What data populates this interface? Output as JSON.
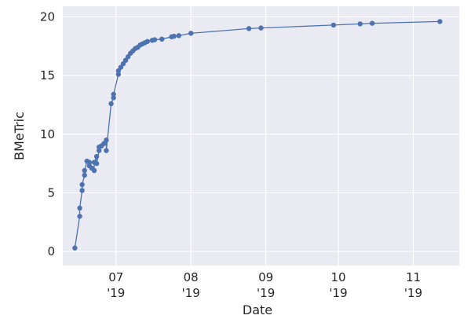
{
  "chart_data": {
    "type": "line",
    "x_label": "Date",
    "y_label": "BMeTric",
    "x": [
      "2019-06-14",
      "2019-06-16",
      "2019-06-16",
      "2019-06-17",
      "2019-06-17",
      "2019-06-18",
      "2019-06-18",
      "2019-06-19",
      "2019-06-20",
      "2019-06-20",
      "2019-06-21",
      "2019-06-22",
      "2019-06-22",
      "2019-06-23",
      "2019-06-23",
      "2019-06-24",
      "2019-06-24",
      "2019-06-25",
      "2019-06-26",
      "2019-06-27",
      "2019-06-27",
      "2019-06-29",
      "2019-06-30",
      "2019-06-30",
      "2019-07-02",
      "2019-07-02",
      "2019-07-03",
      "2019-07-04",
      "2019-07-05",
      "2019-07-06",
      "2019-07-07",
      "2019-07-08",
      "2019-07-09",
      "2019-07-10",
      "2019-07-11",
      "2019-07-12",
      "2019-07-13",
      "2019-07-14",
      "2019-07-16",
      "2019-07-17",
      "2019-07-20",
      "2019-07-24",
      "2019-07-25",
      "2019-07-27",
      "2019-08-01",
      "2019-08-25",
      "2019-08-30",
      "2019-09-29",
      "2019-10-10",
      "2019-10-15",
      "2019-11-12"
    ],
    "series": [
      {
        "name": "BMeTric",
        "color": "#4c72b0",
        "values": [
          0.3,
          3.0,
          3.7,
          5.2,
          5.7,
          6.5,
          6.9,
          7.7,
          7.3,
          7.6,
          7.1,
          6.9,
          7.6,
          8.1,
          7.5,
          8.6,
          8.9,
          9.0,
          9.2,
          9.5,
          8.6,
          12.6,
          13.1,
          13.4,
          15.1,
          15.4,
          15.7,
          16.0,
          16.3,
          16.6,
          16.9,
          17.1,
          17.3,
          17.4,
          17.6,
          17.7,
          17.8,
          17.9,
          18.0,
          18.05,
          18.1,
          18.3,
          18.35,
          18.4,
          18.6,
          19.0,
          19.05,
          19.3,
          19.4,
          19.45,
          19.6
        ]
      }
    ],
    "xlim": [
      "2019-06-09",
      "2019-11-20"
    ],
    "xticks": [
      {
        "value": "2019-07-01",
        "label": "07\n'19"
      },
      {
        "value": "2019-08-01",
        "label": "08\n'19"
      },
      {
        "value": "2019-09-01",
        "label": "09\n'19"
      },
      {
        "value": "2019-10-01",
        "label": "10\n'19"
      },
      {
        "value": "2019-11-01",
        "label": "11\n'19"
      }
    ],
    "ylim": [
      -1.2,
      20.9
    ],
    "yticks": [
      0,
      5,
      10,
      15,
      20
    ],
    "grid": true
  }
}
